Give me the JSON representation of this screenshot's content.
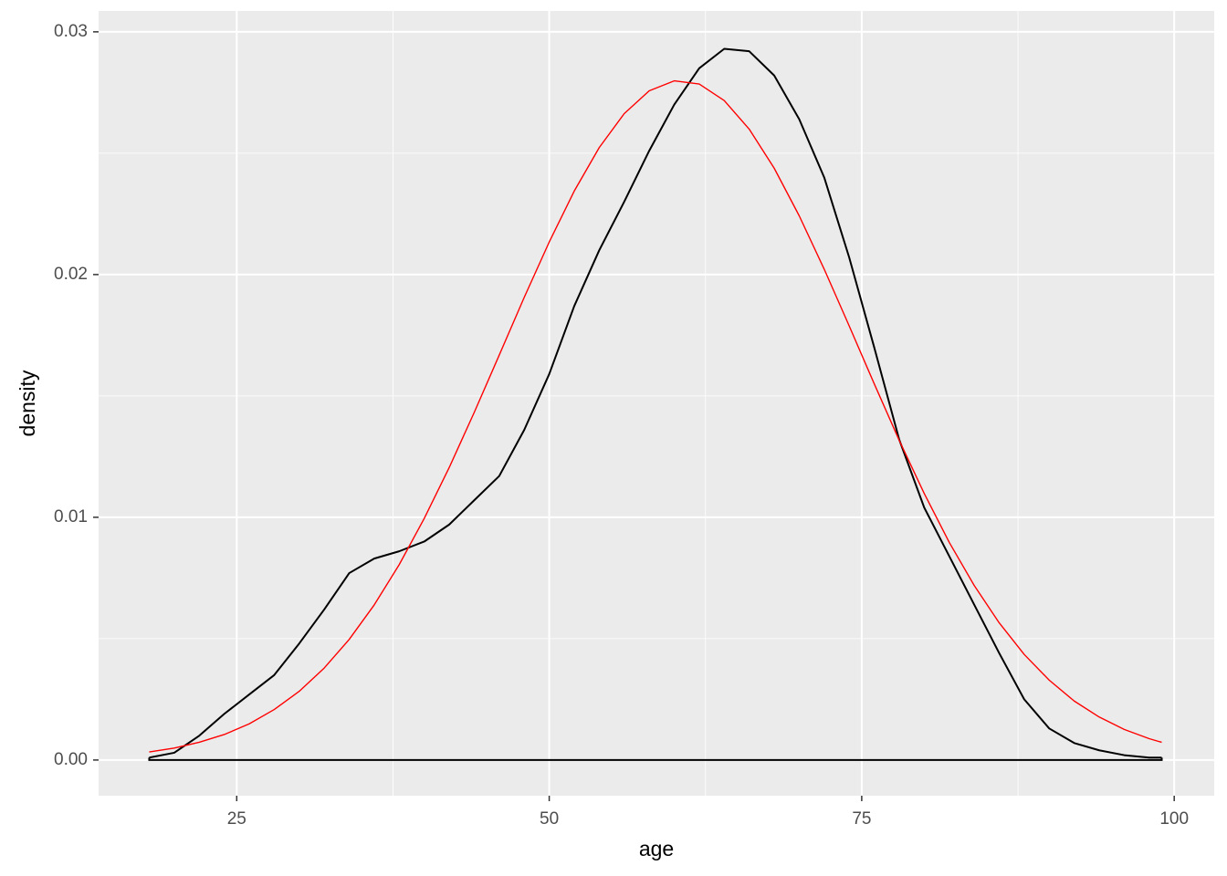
{
  "chart_data": {
    "type": "line",
    "x_label": "age",
    "y_label": "density",
    "x": [
      18,
      20,
      22,
      24,
      26,
      28,
      30,
      32,
      34,
      36,
      38,
      40,
      42,
      44,
      46,
      48,
      50,
      52,
      54,
      56,
      58,
      60,
      62,
      64,
      66,
      68,
      70,
      72,
      74,
      76,
      78,
      80,
      82,
      84,
      86,
      88,
      90,
      92,
      94,
      96,
      98,
      99
    ],
    "series": [
      {
        "color": "#000000",
        "closed_to_zero": true,
        "values": [
          0.0001,
          0.0003,
          0.001,
          0.0019,
          0.0027,
          0.0035,
          0.0048,
          0.0062,
          0.0077,
          0.0083,
          0.0086,
          0.009,
          0.0097,
          0.0107,
          0.0117,
          0.0136,
          0.0159,
          0.0187,
          0.021,
          0.023,
          0.0251,
          0.027,
          0.0285,
          0.0293,
          0.0292,
          0.0282,
          0.0264,
          0.024,
          0.0207,
          0.017,
          0.0132,
          0.0104,
          0.0084,
          0.0064,
          0.0044,
          0.0025,
          0.0013,
          0.0007,
          0.0004,
          0.0002,
          0.0001,
          0.0001
        ]
      },
      {
        "color": "#ff0000",
        "closed_to_zero": false,
        "values": [
          0.00033,
          0.00049,
          0.00073,
          0.00105,
          0.00149,
          0.00208,
          0.00283,
          0.00379,
          0.00497,
          0.00639,
          0.00805,
          0.00995,
          0.01205,
          0.01432,
          0.01668,
          0.01906,
          0.02134,
          0.02344,
          0.02523,
          0.02663,
          0.02757,
          0.02798,
          0.02785,
          0.02717,
          0.02599,
          0.02438,
          0.02242,
          0.02022,
          0.01788,
          0.0155,
          0.01317,
          0.01098,
          0.00897,
          0.00719,
          0.00565,
          0.00435,
          0.00329,
          0.00243,
          0.00177,
          0.00126,
          0.00088,
          0.00073
        ]
      }
    ],
    "xlim": [
      13.95,
      103.2
    ],
    "ylim": [
      -0.00147,
      0.03086
    ],
    "xticks": [
      25,
      50,
      75,
      100
    ],
    "yticks": [
      {
        "value": 0,
        "label": "0.00"
      },
      {
        "value": 0.01,
        "label": "0.01"
      },
      {
        "value": 0.02,
        "label": "0.02"
      },
      {
        "value": 0.03,
        "label": "0.03"
      }
    ],
    "x_minor_grid": [
      37.5,
      62.5,
      87.5
    ],
    "y_minor_grid": [
      0.005,
      0.015,
      0.025
    ],
    "grid": true,
    "panel_color": "#ebebeb"
  }
}
